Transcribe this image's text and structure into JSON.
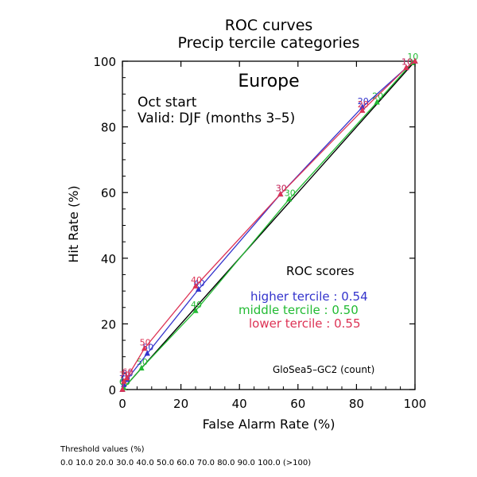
{
  "chart_data": {
    "type": "line",
    "title": "ROC curves",
    "subtitle": "Precip tercile categories",
    "region": "Europe",
    "start_label": "Oct start",
    "valid_label": "Valid: DJF (months 3–5)",
    "xlabel": "False Alarm Rate (%)",
    "ylabel": "Hit Rate (%)",
    "xlim": [
      0,
      100
    ],
    "ylim": [
      0,
      100
    ],
    "xticks": [
      0,
      20,
      40,
      60,
      80,
      100
    ],
    "yticks": [
      0,
      20,
      40,
      60,
      80,
      100
    ],
    "grid": false,
    "diagonal": true,
    "scores_title": "ROC scores",
    "model_label": "GloSea5–GC2 (count)",
    "series": [
      {
        "name": "higher tercile",
        "score_text": "higher tercile : 0.54",
        "color": "#3333cc",
        "points": [
          {
            "x": 0,
            "y": 0,
            "label": ""
          },
          {
            "x": 0.5,
            "y": 1.5,
            "label": "70"
          },
          {
            "x": 1.5,
            "y": 3,
            "label": "60"
          },
          {
            "x": 8.5,
            "y": 11,
            "label": "50"
          },
          {
            "x": 26,
            "y": 30.5,
            "label": "40"
          },
          {
            "x": 54,
            "y": 59.5,
            "label": "30"
          },
          {
            "x": 82,
            "y": 86,
            "label": "20"
          },
          {
            "x": 97,
            "y": 98,
            "label": "10"
          },
          {
            "x": 100,
            "y": 100,
            "label": ""
          }
        ]
      },
      {
        "name": "middle tercile",
        "score_text": "middle tercile : 0.50",
        "color": "#22bb33",
        "points": [
          {
            "x": 0,
            "y": 0,
            "label": ""
          },
          {
            "x": 0.5,
            "y": 0.5,
            "label": "60"
          },
          {
            "x": 6.5,
            "y": 6.5,
            "label": "50"
          },
          {
            "x": 25,
            "y": 24,
            "label": "40"
          },
          {
            "x": 57,
            "y": 58,
            "label": "30"
          },
          {
            "x": 87,
            "y": 87.5,
            "label": "20"
          },
          {
            "x": 99,
            "y": 99.5,
            "label": "10"
          },
          {
            "x": 100,
            "y": 100,
            "label": ""
          }
        ]
      },
      {
        "name": "lower tercile",
        "score_text": "lower tercile : 0.55",
        "color": "#dd3355",
        "points": [
          {
            "x": 0,
            "y": 0,
            "label": ""
          },
          {
            "x": 0.5,
            "y": 2.5,
            "label": "70"
          },
          {
            "x": 1.5,
            "y": 3.5,
            "label": "60"
          },
          {
            "x": 7.5,
            "y": 12.5,
            "label": "50"
          },
          {
            "x": 25,
            "y": 31.5,
            "label": "40"
          },
          {
            "x": 54,
            "y": 59.5,
            "label": "30"
          },
          {
            "x": 82,
            "y": 85,
            "label": "20"
          },
          {
            "x": 97,
            "y": 98,
            "label": "10"
          },
          {
            "x": 100,
            "y": 100,
            "label": ""
          }
        ]
      }
    ]
  },
  "footer": {
    "threshold_title": "Threshold values (%)",
    "threshold_values": "0.0 10.0 20.0 30.0 40.0 50.0 60.0 70.0 80.0 90.0 100.0 (>100)"
  }
}
